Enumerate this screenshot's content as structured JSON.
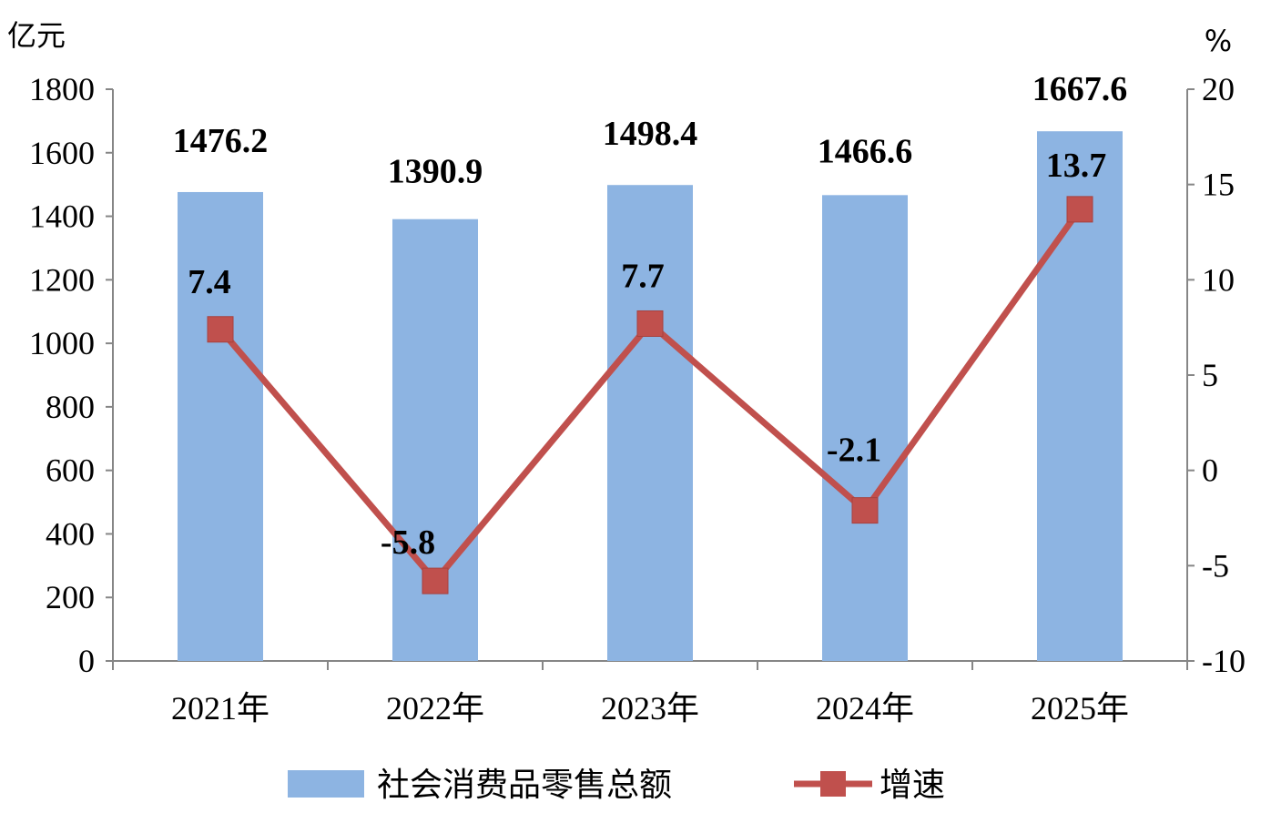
{
  "chart_data": {
    "type": "bar",
    "categories": [
      "2021年",
      "2022年",
      "2023年",
      "2024年",
      "2025年"
    ],
    "series": [
      {
        "name": "社会消费品零售总额",
        "type": "bar",
        "axis": "left",
        "values": [
          1476.2,
          1390.9,
          1498.4,
          1466.6,
          1667.6
        ],
        "labels": [
          "1476.2",
          "1390.9",
          "1498.4",
          "1466.6",
          "1667.6"
        ],
        "color": "#8db4e2"
      },
      {
        "name": "增速",
        "type": "line",
        "axis": "right",
        "values": [
          7.4,
          -5.8,
          7.7,
          -2.1,
          13.7
        ],
        "labels": [
          "7.4",
          "-5.8",
          "7.7",
          "-2.1",
          "13.7"
        ],
        "color": "#c0504d"
      }
    ],
    "ylabel": "亿元",
    "ylabel_right": "%",
    "ylim": [
      0,
      1800
    ],
    "ylim_right": [
      -10,
      20
    ],
    "yticks": [
      "0",
      "200",
      "400",
      "600",
      "800",
      "1000",
      "1200",
      "1400",
      "1600",
      "1800"
    ],
    "yticks_right": [
      "-10",
      "-5",
      "0",
      "5",
      "10",
      "15",
      "20"
    ],
    "grid": false,
    "legend_position": "bottom"
  }
}
